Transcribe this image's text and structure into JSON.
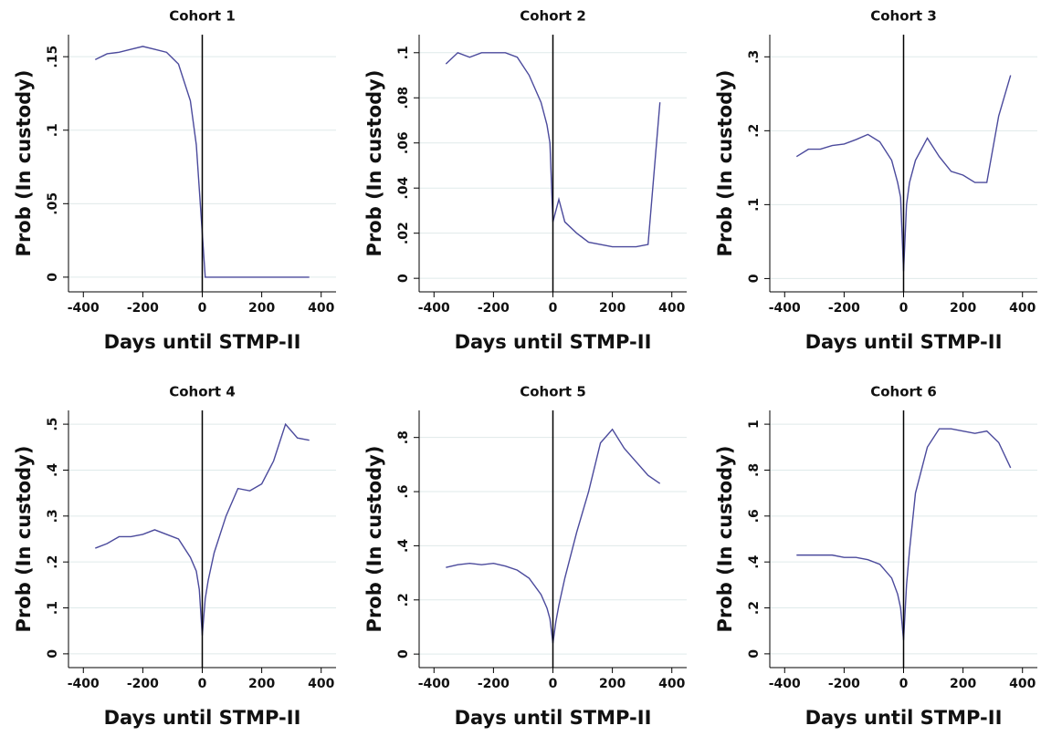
{
  "chart_data": [
    {
      "type": "line",
      "title": "Cohort 1",
      "x_label": "Days until STMP-II",
      "y_label": "Prob (In custody)",
      "x": [
        -360,
        -320,
        -280,
        -240,
        -200,
        -160,
        -120,
        -80,
        -40,
        -20,
        -10,
        0,
        10,
        20,
        40,
        80,
        120,
        160,
        200,
        240,
        280,
        320,
        360
      ],
      "series": [
        {
          "color": "#4b4a9c",
          "values": [
            0.148,
            0.152,
            0.153,
            0.155,
            0.157,
            0.155,
            0.153,
            0.145,
            0.12,
            0.09,
            0.06,
            0.03,
            0,
            0,
            0,
            0,
            0,
            0,
            0,
            0,
            0,
            0,
            0
          ]
        }
      ],
      "xlim": [
        -450,
        450
      ],
      "xticks": [
        -400,
        -200,
        0,
        200,
        400
      ],
      "ylim": [
        -0.01,
        0.165
      ],
      "yticks": [
        0,
        {
          "value": 0.05,
          "label": ".05"
        },
        {
          "value": 0.1,
          "label": ".1"
        },
        {
          "value": 0.15,
          "label": ".15"
        }
      ],
      "grid": true,
      "xline": 0
    },
    {
      "type": "line",
      "title": "Cohort 2",
      "x_label": "Days until STMP-II",
      "y_label": "Prob (In custody)",
      "x": [
        -360,
        -320,
        -280,
        -240,
        -200,
        -160,
        -120,
        -80,
        -40,
        -20,
        -10,
        0,
        10,
        20,
        40,
        80,
        120,
        160,
        200,
        240,
        280,
        320,
        360
      ],
      "series": [
        {
          "color": "#4b4a9c",
          "values": [
            0.095,
            0.1,
            0.098,
            0.1,
            0.1,
            0.1,
            0.098,
            0.09,
            0.078,
            0.068,
            0.06,
            0.025,
            0.03,
            0.035,
            0.025,
            0.02,
            0.016,
            0.015,
            0.014,
            0.014,
            0.014,
            0.015,
            0.078
          ]
        }
      ],
      "xlim": [
        -450,
        450
      ],
      "xticks": [
        -400,
        -200,
        0,
        200,
        400
      ],
      "ylim": [
        -0.006,
        0.108
      ],
      "yticks": [
        0,
        {
          "value": 0.02,
          "label": ".02"
        },
        {
          "value": 0.04,
          "label": ".04"
        },
        {
          "value": 0.06,
          "label": ".06"
        },
        {
          "value": 0.08,
          "label": ".08"
        },
        {
          "value": 0.1,
          "label": ".1"
        }
      ],
      "grid": true,
      "xline": 0
    },
    {
      "type": "line",
      "title": "Cohort 3",
      "x_label": "Days until STMP-II",
      "y_label": "Prob (In custody)",
      "x": [
        -360,
        -320,
        -280,
        -240,
        -200,
        -160,
        -120,
        -80,
        -40,
        -20,
        -10,
        0,
        10,
        20,
        40,
        80,
        120,
        160,
        200,
        240,
        280,
        320,
        360
      ],
      "series": [
        {
          "color": "#4b4a9c",
          "values": [
            0.165,
            0.175,
            0.175,
            0.18,
            0.182,
            0.188,
            0.195,
            0.185,
            0.16,
            0.13,
            0.11,
            0.01,
            0.1,
            0.13,
            0.16,
            0.19,
            0.165,
            0.145,
            0.14,
            0.13,
            0.13,
            0.22,
            0.275
          ]
        }
      ],
      "xlim": [
        -450,
        450
      ],
      "xticks": [
        -400,
        -200,
        0,
        200,
        400
      ],
      "ylim": [
        -0.018,
        0.33
      ],
      "yticks": [
        0,
        {
          "value": 0.1,
          "label": ".1"
        },
        {
          "value": 0.2,
          "label": ".2"
        },
        {
          "value": 0.3,
          "label": ".3"
        }
      ],
      "grid": true,
      "xline": 0
    },
    {
      "type": "line",
      "title": "Cohort 4",
      "x_label": "Days until STMP-II",
      "y_label": "Prob (In custody)",
      "x": [
        -360,
        -320,
        -280,
        -240,
        -200,
        -160,
        -120,
        -80,
        -40,
        -20,
        -10,
        0,
        10,
        20,
        40,
        80,
        120,
        160,
        200,
        240,
        280,
        320,
        360
      ],
      "series": [
        {
          "color": "#4b4a9c",
          "values": [
            0.23,
            0.24,
            0.255,
            0.255,
            0.26,
            0.27,
            0.26,
            0.25,
            0.21,
            0.18,
            0.14,
            0.04,
            0.12,
            0.16,
            0.22,
            0.3,
            0.36,
            0.355,
            0.37,
            0.42,
            0.5,
            0.47,
            0.465
          ]
        }
      ],
      "xlim": [
        -450,
        450
      ],
      "xticks": [
        -400,
        -200,
        0,
        200,
        400
      ],
      "ylim": [
        -0.03,
        0.53
      ],
      "yticks": [
        0,
        {
          "value": 0.1,
          "label": ".1"
        },
        {
          "value": 0.2,
          "label": ".2"
        },
        {
          "value": 0.3,
          "label": ".3"
        },
        {
          "value": 0.4,
          "label": ".4"
        },
        {
          "value": 0.5,
          "label": ".5"
        }
      ],
      "grid": true,
      "xline": 0
    },
    {
      "type": "line",
      "title": "Cohort 5",
      "x_label": "Days until STMP-II",
      "y_label": "Prob (In custody)",
      "x": [
        -360,
        -320,
        -280,
        -240,
        -200,
        -160,
        -120,
        -80,
        -40,
        -20,
        -10,
        0,
        10,
        20,
        40,
        80,
        120,
        160,
        200,
        240,
        280,
        320,
        360
      ],
      "series": [
        {
          "color": "#4b4a9c",
          "values": [
            0.32,
            0.33,
            0.335,
            0.33,
            0.335,
            0.325,
            0.31,
            0.28,
            0.22,
            0.17,
            0.13,
            0.04,
            0.12,
            0.18,
            0.28,
            0.45,
            0.6,
            0.78,
            0.83,
            0.76,
            0.71,
            0.66,
            0.63
          ]
        }
      ],
      "xlim": [
        -450,
        450
      ],
      "xticks": [
        -400,
        -200,
        0,
        200,
        400
      ],
      "ylim": [
        -0.05,
        0.9
      ],
      "yticks": [
        0,
        {
          "value": 0.2,
          "label": ".2"
        },
        {
          "value": 0.4,
          "label": ".4"
        },
        {
          "value": 0.6,
          "label": ".6"
        },
        {
          "value": 0.8,
          "label": ".8"
        }
      ],
      "grid": true,
      "xline": 0
    },
    {
      "type": "line",
      "title": "Cohort 6",
      "x_label": "Days until STMP-II",
      "y_label": "Prob (In custody)",
      "x": [
        -360,
        -320,
        -280,
        -240,
        -200,
        -160,
        -120,
        -80,
        -40,
        -20,
        -10,
        0,
        10,
        20,
        40,
        80,
        120,
        160,
        200,
        240,
        280,
        320,
        360
      ],
      "series": [
        {
          "color": "#4b4a9c",
          "values": [
            0.43,
            0.43,
            0.43,
            0.43,
            0.42,
            0.42,
            0.41,
            0.39,
            0.33,
            0.26,
            0.2,
            0.06,
            0.3,
            0.45,
            0.7,
            0.9,
            0.98,
            0.98,
            0.97,
            0.96,
            0.97,
            0.92,
            0.81
          ]
        }
      ],
      "xlim": [
        -450,
        450
      ],
      "xticks": [
        -400,
        -200,
        0,
        200,
        400
      ],
      "ylim": [
        -0.06,
        1.06
      ],
      "yticks": [
        0,
        {
          "value": 0.2,
          "label": ".2"
        },
        {
          "value": 0.4,
          "label": ".4"
        },
        {
          "value": 0.6,
          "label": ".6"
        },
        {
          "value": 0.8,
          "label": ".8"
        },
        1
      ],
      "grid": true,
      "xline": 0
    }
  ]
}
